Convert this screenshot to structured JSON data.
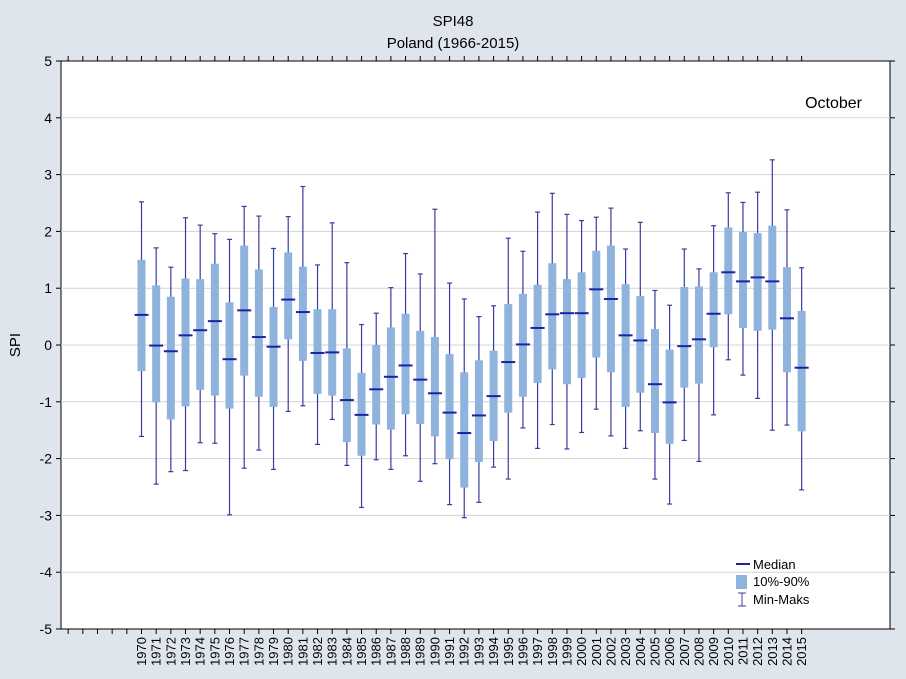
{
  "chart_data": {
    "type": "box",
    "title": "SPI48",
    "subtitle": "Poland (1966-2015)",
    "ylabel": "SPI",
    "xlabel": "",
    "annotation": "October",
    "ylim": [
      -5,
      5
    ],
    "yticks": [
      5,
      4,
      3,
      2,
      1,
      0,
      -1,
      -2,
      -3,
      -4,
      -5
    ],
    "grid": true,
    "legend_position": "bottom-right",
    "legend": [
      "Median",
      "10%-90%",
      "Min-Maks"
    ],
    "colors": {
      "box": "#8fb3dc",
      "median": "#1f1fa0",
      "whisker": "#3b3b9e",
      "background": "#dfe5ec",
      "plot": "#ffffff",
      "grid": "#d4d4d4"
    },
    "categories": [
      "1970",
      "1971",
      "1972",
      "1973",
      "1974",
      "1975",
      "1976",
      "1977",
      "1978",
      "1979",
      "1980",
      "1981",
      "1982",
      "1983",
      "1984",
      "1985",
      "1986",
      "1987",
      "1988",
      "1989",
      "1990",
      "1991",
      "1992",
      "1993",
      "1994",
      "1995",
      "1996",
      "1997",
      "1998",
      "1999",
      "2000",
      "2001",
      "2002",
      "2003",
      "2004",
      "2005",
      "2006",
      "2007",
      "2008",
      "2009",
      "2010",
      "2011",
      "2012",
      "2013",
      "2014",
      "2015"
    ],
    "median": [
      0.53,
      -0.01,
      -0.11,
      0.17,
      0.26,
      0.42,
      -0.25,
      0.61,
      0.14,
      -0.03,
      0.8,
      0.58,
      -0.14,
      -0.13,
      -0.97,
      -1.23,
      -0.78,
      -0.56,
      -0.36,
      -0.61,
      -0.85,
      -1.19,
      -1.55,
      -1.24,
      -0.9,
      -0.3,
      0.01,
      0.3,
      0.54,
      0.56,
      0.56,
      0.98,
      0.81,
      0.17,
      0.08,
      -0.69,
      -1.01,
      -0.02,
      0.1,
      0.55,
      1.28,
      1.12,
      1.19,
      1.12,
      0.47,
      -0.4
    ],
    "p10": [
      -0.46,
      -1.01,
      -1.31,
      -1.08,
      -0.79,
      -0.89,
      -1.12,
      -0.54,
      -0.91,
      -1.09,
      0.1,
      -0.28,
      -0.86,
      -0.89,
      -1.71,
      -1.95,
      -1.4,
      -1.49,
      -1.22,
      -1.39,
      -1.61,
      -2.01,
      -2.51,
      -2.06,
      -1.69,
      -1.19,
      -0.91,
      -0.67,
      -0.43,
      -0.69,
      -0.58,
      -0.22,
      -0.48,
      -1.09,
      -0.84,
      -1.55,
      -1.74,
      -0.75,
      -0.68,
      -0.04,
      0.54,
      0.3,
      0.25,
      0.27,
      -0.48,
      -1.52
    ],
    "p90": [
      1.5,
      1.05,
      0.85,
      1.17,
      1.16,
      1.43,
      0.75,
      1.75,
      1.33,
      0.67,
      1.63,
      1.38,
      0.63,
      0.63,
      -0.06,
      -0.49,
      0.0,
      0.31,
      0.55,
      0.25,
      0.14,
      -0.16,
      -0.48,
      -0.27,
      -0.1,
      0.72,
      0.9,
      1.06,
      1.44,
      1.16,
      1.28,
      1.66,
      1.75,
      1.07,
      0.86,
      0.28,
      -0.08,
      1.02,
      1.03,
      1.28,
      2.07,
      1.99,
      1.97,
      2.1,
      1.37,
      0.6
    ],
    "min": [
      -1.61,
      -2.45,
      -2.23,
      -2.21,
      -1.72,
      -1.73,
      -2.99,
      -2.17,
      -1.85,
      -2.19,
      -1.17,
      -1.07,
      -1.75,
      -1.31,
      -2.12,
      -2.86,
      -2.02,
      -2.19,
      -1.95,
      -2.4,
      -2.09,
      -2.81,
      -3.04,
      -2.77,
      -2.15,
      -2.36,
      -1.46,
      -1.82,
      -1.4,
      -1.83,
      -1.54,
      -1.13,
      -1.6,
      -1.82,
      -1.51,
      -2.36,
      -2.8,
      -1.68,
      -2.05,
      -1.23,
      -0.26,
      -0.53,
      -0.94,
      -1.5,
      -1.41,
      -2.55
    ],
    "max": [
      2.52,
      1.71,
      1.37,
      2.24,
      2.11,
      1.96,
      1.86,
      2.44,
      2.27,
      1.7,
      2.26,
      2.79,
      1.41,
      2.15,
      1.45,
      0.36,
      0.56,
      1.01,
      1.61,
      1.25,
      2.39,
      1.09,
      0.81,
      0.5,
      0.69,
      1.88,
      1.65,
      2.34,
      2.67,
      2.3,
      2.19,
      2.25,
      2.41,
      1.69,
      2.16,
      0.96,
      0.7,
      1.69,
      1.34,
      2.1,
      2.68,
      2.51,
      2.69,
      3.26,
      2.38,
      1.36
    ]
  }
}
